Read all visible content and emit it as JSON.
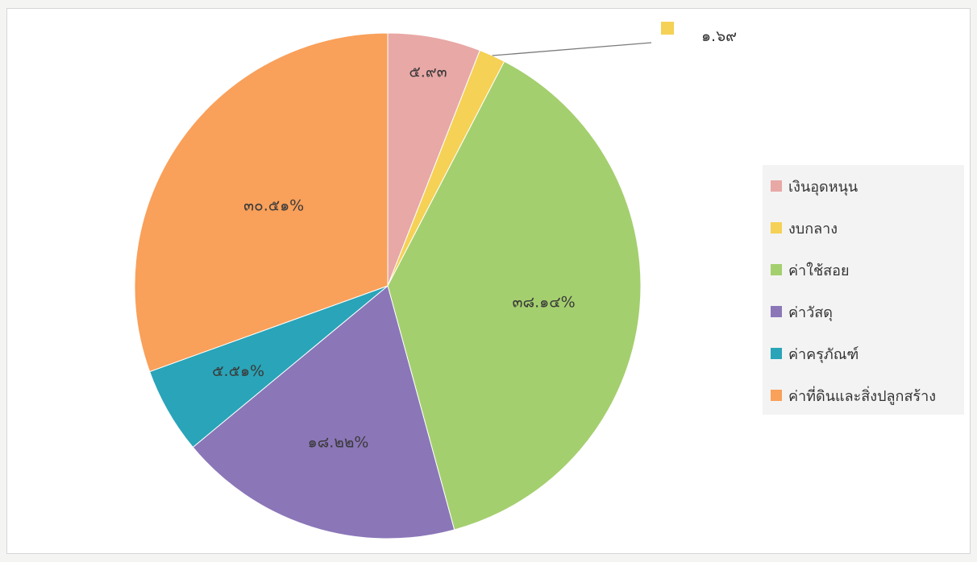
{
  "chart_data": {
    "type": "pie",
    "title": "",
    "legend_placement": "right",
    "series": [
      {
        "name": "เงินอุดหนุน",
        "value": 5.93,
        "label": "๕.๙๓",
        "color": "#e8a8a6"
      },
      {
        "name": "งบกลาง",
        "value": 1.69,
        "label": "๑.๖๙",
        "color": "#f5d155"
      },
      {
        "name": "ค่าใช้สอย",
        "value": 38.14,
        "label": "๓๘.๑๔%",
        "color": "#a4cf6e"
      },
      {
        "name": "ค่าวัสดุ",
        "value": 18.22,
        "label": "๑๘.๒๒%",
        "color": "#8b76b8"
      },
      {
        "name": "ค่าครุภัณฑ์",
        "value": 5.51,
        "label": "๕.๕๑%",
        "color": "#2aa4b8"
      },
      {
        "name": "ค่าที่ดินและสิ่งปลูกสร้าง",
        "value": 30.51,
        "label": "๓๐.๕๑%",
        "color": "#f9a05a"
      }
    ]
  }
}
